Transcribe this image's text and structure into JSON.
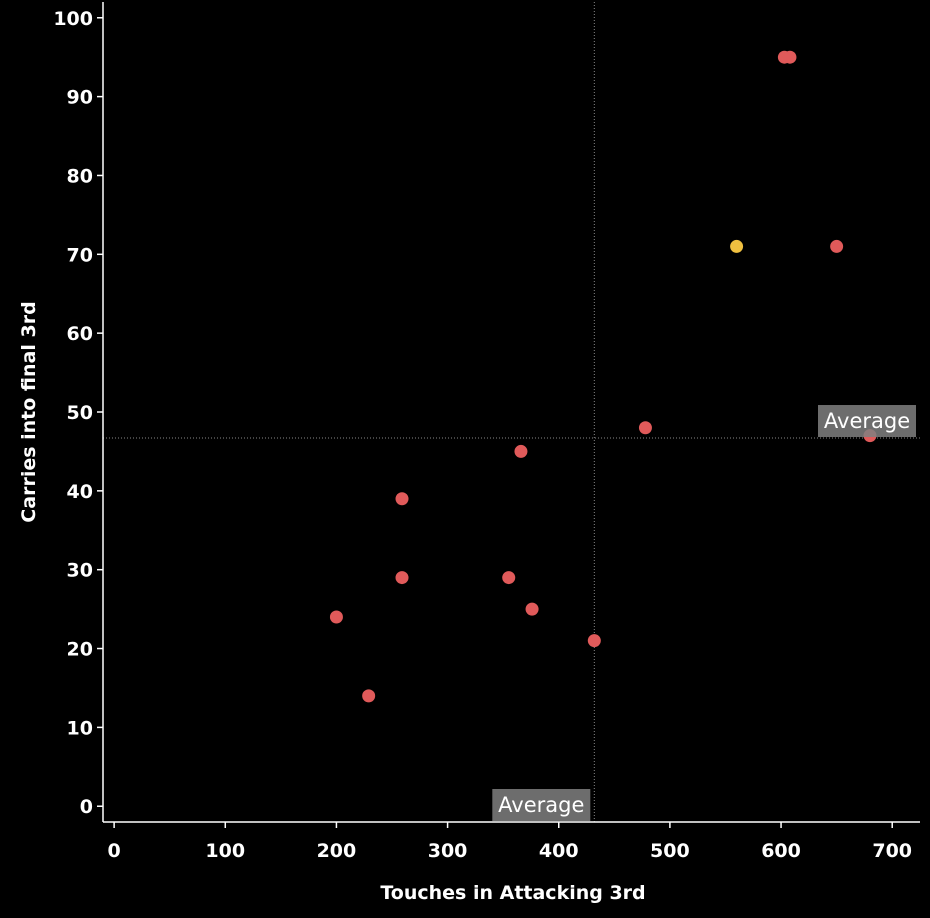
{
  "chart_data": {
    "type": "scatter",
    "xlabel": "Touches in Attacking 3rd",
    "ylabel": "Carries into final 3rd",
    "xlim": [
      -10,
      725
    ],
    "ylim": [
      -2,
      102
    ],
    "xticks": [
      0,
      100,
      200,
      300,
      400,
      500,
      600,
      700
    ],
    "yticks": [
      0,
      10,
      20,
      30,
      40,
      50,
      60,
      70,
      80,
      90,
      100
    ],
    "grid": false,
    "legend": "none",
    "colors": {
      "default": "#e05a5a",
      "highlight": "#f0c040",
      "background": "#000000",
      "axis": "#ffffff",
      "reference": "#888888"
    },
    "points": [
      {
        "x": 603,
        "y": 95,
        "highlight": false
      },
      {
        "x": 608,
        "y": 95,
        "highlight": false
      },
      {
        "x": 560,
        "y": 71,
        "highlight": true
      },
      {
        "x": 650,
        "y": 71,
        "highlight": false
      },
      {
        "x": 680,
        "y": 47,
        "highlight": false
      },
      {
        "x": 478,
        "y": 48,
        "highlight": false
      },
      {
        "x": 366,
        "y": 45,
        "highlight": false
      },
      {
        "x": 259,
        "y": 39,
        "highlight": false
      },
      {
        "x": 259,
        "y": 29,
        "highlight": false
      },
      {
        "x": 355,
        "y": 29,
        "highlight": false
      },
      {
        "x": 376,
        "y": 25,
        "highlight": false
      },
      {
        "x": 200,
        "y": 24,
        "highlight": false
      },
      {
        "x": 432,
        "y": 21,
        "highlight": false
      },
      {
        "x": 229,
        "y": 14,
        "highlight": false
      }
    ],
    "reference_lines": [
      {
        "axis": "x",
        "value": 432,
        "label": "Average"
      },
      {
        "axis": "y",
        "value": 46.7,
        "label": "Average"
      }
    ]
  }
}
